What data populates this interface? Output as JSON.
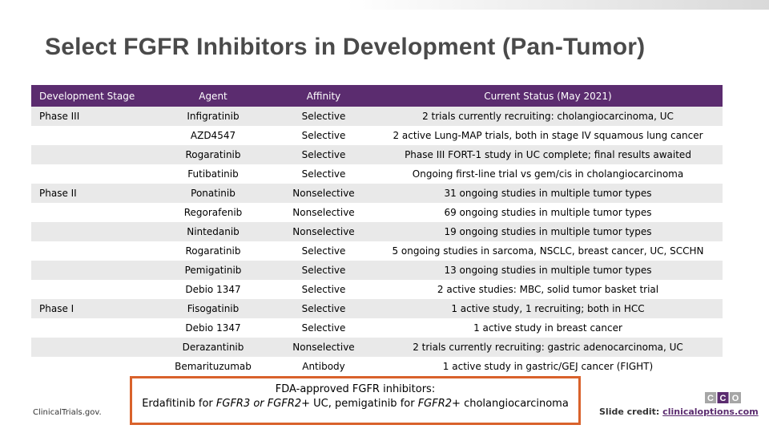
{
  "title": "Select FGFR Inhibitors in Development (Pan-Tumor)",
  "table": {
    "headers": [
      "Development Stage",
      "Agent",
      "Affinity",
      "Current Status (May 2021)"
    ],
    "rows": [
      [
        "Phase III",
        "Infigratinib",
        "Selective",
        "2 trials currently recruiting: cholangiocarcinoma, UC"
      ],
      [
        "",
        "AZD4547",
        "Selective",
        "2 active Lung-MAP trials, both in stage IV squamous lung cancer"
      ],
      [
        "",
        "Rogaratinib",
        "Selective",
        "Phase III FORT-1 study in UC complete; final results awaited"
      ],
      [
        "",
        "Futibatinib",
        "Selective",
        "Ongoing first-line trial vs gem/cis in cholangiocarcinoma"
      ],
      [
        "Phase II",
        "Ponatinib",
        "Nonselective",
        "31 ongoing studies in multiple tumor types"
      ],
      [
        "",
        "Regorafenib",
        "Nonselective",
        "69 ongoing studies in multiple tumor types"
      ],
      [
        "",
        "Nintedanib",
        "Nonselective",
        "19 ongoing studies in multiple tumor types"
      ],
      [
        "",
        "Rogaratinib",
        "Selective",
        "5 ongoing studies in sarcoma, NSCLC, breast cancer, UC, SCCHN"
      ],
      [
        "",
        "Pemigatinib",
        "Selective",
        "13 ongoing studies in multiple tumor types"
      ],
      [
        "",
        "Debio 1347",
        "Selective",
        "2 active studies: MBC, solid tumor basket trial"
      ],
      [
        "Phase I",
        "Fisogatinib",
        "Selective",
        "1 active study, 1 recruiting; both in HCC"
      ],
      [
        "",
        "Debio 1347",
        "Selective",
        "1 active study in breast cancer"
      ],
      [
        "",
        "Derazantinib",
        "Nonselective",
        "2 trials currently recruiting: gastric adenocarcinoma, UC"
      ],
      [
        "",
        "Bemarituzumab",
        "Antibody",
        "1 active study in gastric/GEJ cancer (FIGHT)"
      ]
    ]
  },
  "fda_box": {
    "title": "FDA-approved FGFR inhibitors:",
    "line_parts": {
      "p1": "Erdafitinib for ",
      "p2": "FGFR3 or FGFR2",
      "p3": "+ UC, pemigatinib for ",
      "p4": "FGFR2",
      "p5": "+ cholangiocarcinoma"
    }
  },
  "source": "ClinicalTrials.gov.",
  "credit": {
    "label": "Slide credit: ",
    "link": "clinicaloptions.com"
  },
  "logo": {
    "letters": [
      "C",
      "C",
      "O"
    ],
    "colors": [
      "#a6a6a6",
      "#5b2c6f",
      "#a6a6a6"
    ]
  }
}
